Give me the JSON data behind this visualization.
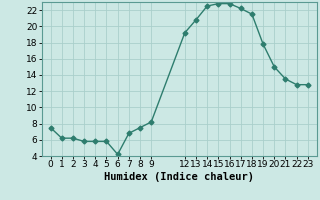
{
  "x": [
    0,
    1,
    2,
    3,
    4,
    5,
    6,
    7,
    8,
    9,
    12,
    13,
    14,
    15,
    16,
    17,
    18,
    19,
    20,
    21,
    22,
    23
  ],
  "y": [
    7.5,
    6.2,
    6.2,
    5.8,
    5.8,
    5.8,
    4.2,
    6.8,
    7.5,
    8.2,
    19.2,
    20.8,
    22.5,
    22.8,
    22.8,
    22.2,
    21.5,
    17.8,
    15.0,
    13.5,
    12.8,
    12.8
  ],
  "line_color": "#2e7d6e",
  "marker": "D",
  "marker_size": 2.5,
  "bg_color": "#cce8e4",
  "grid_color": "#aacfcb",
  "xlabel": "Humidex (Indice chaleur)",
  "ylim": [
    4,
    23
  ],
  "yticks": [
    4,
    6,
    8,
    10,
    12,
    14,
    16,
    18,
    20,
    22
  ],
  "xlabel_fontsize": 7.5,
  "tick_fontsize": 6.5,
  "line_width": 1.0
}
